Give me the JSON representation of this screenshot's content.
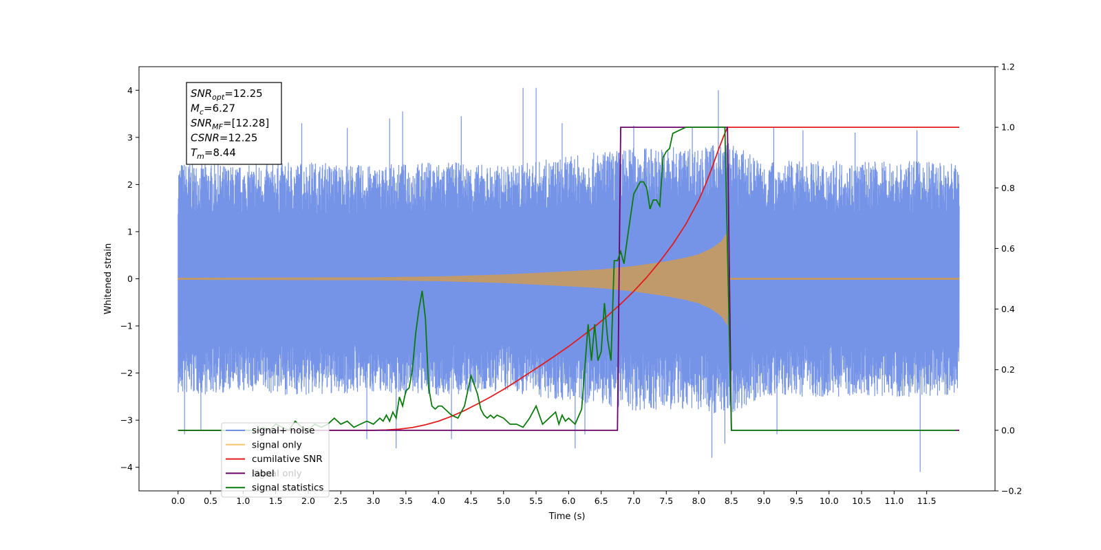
{
  "chart_data": {
    "type": "line",
    "title": "",
    "xlabel": "Time (s)",
    "ylabel": "Whitened strain",
    "xlim": [
      -0.6,
      12.55
    ],
    "ylim": [
      -4.5,
      4.5
    ],
    "y2lim": [
      -0.2,
      1.2
    ],
    "x_ticks": [
      0.0,
      0.5,
      1.0,
      1.5,
      2.0,
      2.5,
      3.0,
      3.5,
      4.0,
      4.5,
      5.0,
      5.5,
      6.0,
      6.5,
      7.0,
      7.5,
      8.0,
      8.5,
      9.0,
      9.5,
      10.0,
      10.5,
      11.0,
      11.5
    ],
    "x_tick_labels": [
      "0.0",
      "0.5",
      "1.0",
      "1.5",
      "2.0",
      "2.5",
      "3.0",
      "3.5",
      "4.0",
      "4.5",
      "5.0",
      "5.5",
      "6.0",
      "6.5",
      "7.0",
      "7.5",
      "8.0",
      "8.5",
      "9.0",
      "9.5",
      "10.0",
      "10.5",
      "11.0",
      "11.5"
    ],
    "y_ticks": [
      -4,
      -3,
      -2,
      -1,
      0,
      1,
      2,
      3,
      4
    ],
    "y_tick_labels": [
      "−4",
      "−3",
      "−2",
      "−1",
      "0",
      "1",
      "2",
      "3",
      "4"
    ],
    "y2_ticks": [
      -0.2,
      0.0,
      0.2,
      0.4,
      0.6,
      0.8,
      1.0,
      1.2
    ],
    "y2_tick_labels": [
      "−0.2",
      "0.0",
      "0.2",
      "0.4",
      "0.6",
      "0.8",
      "1.0",
      "1.2"
    ],
    "grid": false,
    "legend_position": "lower-left",
    "annotation": {
      "lines": [
        {
          "base": "SNR",
          "sub": "opt",
          "value": "=12.25"
        },
        {
          "base": "M",
          "sub": "c",
          "value": "=6.27"
        },
        {
          "base": "SNR",
          "sub": "MF",
          "value": "=[12.28]"
        },
        {
          "base": "CSNR",
          "sub": "",
          "value": "=12.25"
        },
        {
          "base": "T",
          "sub": "m",
          "value": "=8.44"
        }
      ]
    },
    "series": [
      {
        "name": "signal+ noise",
        "axis": "left",
        "color": "#6f8ee6",
        "t_start": 0.0,
        "t_end": 12.0,
        "envelope_top": [
          [
            0.0,
            2.5
          ],
          [
            1.0,
            2.4
          ],
          [
            2.0,
            2.5
          ],
          [
            3.0,
            2.4
          ],
          [
            4.0,
            2.5
          ],
          [
            5.0,
            2.4
          ],
          [
            6.0,
            2.6
          ],
          [
            7.0,
            2.8
          ],
          [
            8.0,
            2.8
          ],
          [
            8.45,
            2.9
          ],
          [
            9.0,
            2.5
          ],
          [
            10.0,
            2.5
          ],
          [
            11.0,
            2.5
          ],
          [
            12.0,
            2.5
          ]
        ],
        "envelope_bottom": [
          [
            0.0,
            -2.5
          ],
          [
            1.0,
            -2.4
          ],
          [
            2.0,
            -2.5
          ],
          [
            3.0,
            -2.4
          ],
          [
            4.0,
            -2.5
          ],
          [
            5.0,
            -2.4
          ],
          [
            6.0,
            -2.6
          ],
          [
            7.0,
            -2.8
          ],
          [
            8.0,
            -2.8
          ],
          [
            8.45,
            -2.9
          ],
          [
            9.0,
            -2.5
          ],
          [
            10.0,
            -2.5
          ],
          [
            11.0,
            -2.5
          ],
          [
            12.0,
            -2.5
          ]
        ],
        "spikes": [
          [
            0.1,
            -3.3
          ],
          [
            0.35,
            -3.2
          ],
          [
            1.2,
            3.1
          ],
          [
            1.9,
            3.3
          ],
          [
            2.6,
            3.2
          ],
          [
            2.9,
            -3.4
          ],
          [
            3.25,
            3.4
          ],
          [
            3.35,
            -3.6
          ],
          [
            3.45,
            3.55
          ],
          [
            4.2,
            -3.4
          ],
          [
            4.35,
            3.45
          ],
          [
            5.3,
            4.05
          ],
          [
            5.5,
            4.05
          ],
          [
            5.9,
            3.3
          ],
          [
            6.1,
            -3.6
          ],
          [
            6.25,
            -3.3
          ],
          [
            7.0,
            3.25
          ],
          [
            7.9,
            3.2
          ],
          [
            8.2,
            -3.8
          ],
          [
            8.3,
            4.0
          ],
          [
            8.4,
            -3.5
          ],
          [
            9.15,
            3.2
          ],
          [
            9.2,
            -3.3
          ],
          [
            9.6,
            3.15
          ],
          [
            10.4,
            3.1
          ],
          [
            11.35,
            3.15
          ],
          [
            11.4,
            -4.1
          ]
        ]
      },
      {
        "name": "signal only",
        "axis": "left",
        "color": "#c09a6b",
        "t_start": 0.0,
        "t_end": 8.45,
        "amplitude_envelope": [
          [
            0.0,
            0.02
          ],
          [
            3.0,
            0.03
          ],
          [
            4.0,
            0.05
          ],
          [
            5.0,
            0.09
          ],
          [
            6.0,
            0.16
          ],
          [
            6.5,
            0.2
          ],
          [
            7.0,
            0.27
          ],
          [
            7.5,
            0.37
          ],
          [
            7.8,
            0.45
          ],
          [
            8.0,
            0.52
          ],
          [
            8.2,
            0.65
          ],
          [
            8.35,
            0.8
          ],
          [
            8.44,
            1.0
          ],
          [
            8.46,
            0.02
          ],
          [
            12.0,
            0.02
          ]
        ]
      },
      {
        "name": "cumilative SNR",
        "axis": "right",
        "color": "#e31a1c",
        "x": [
          0.0,
          2.0,
          3.0,
          3.2,
          3.4,
          3.6,
          3.8,
          4.0,
          4.2,
          4.4,
          4.6,
          4.8,
          5.0,
          5.2,
          5.4,
          5.6,
          5.8,
          6.0,
          6.2,
          6.4,
          6.6,
          6.8,
          7.0,
          7.2,
          7.4,
          7.6,
          7.8,
          8.0,
          8.1,
          8.2,
          8.3,
          8.38,
          8.44,
          8.5,
          9.0,
          10.0,
          11.0,
          12.0
        ],
        "y": [
          0.0,
          0.0,
          0.0,
          0.001,
          0.004,
          0.009,
          0.018,
          0.03,
          0.046,
          0.065,
          0.087,
          0.11,
          0.135,
          0.162,
          0.19,
          0.218,
          0.247,
          0.277,
          0.309,
          0.342,
          0.378,
          0.417,
          0.459,
          0.505,
          0.557,
          0.614,
          0.68,
          0.76,
          0.81,
          0.865,
          0.925,
          0.97,
          1.0,
          1.0,
          1.0,
          1.0,
          1.0,
          1.0
        ]
      },
      {
        "name": "label",
        "axis": "right",
        "color": "#6a006a",
        "x": [
          0.0,
          6.75,
          6.8,
          8.44,
          8.5,
          12.0
        ],
        "y": [
          0.0,
          0.0,
          1.0,
          1.0,
          0.0,
          0.0
        ]
      },
      {
        "name": "signal statistics",
        "axis": "right",
        "color": "#0a7a0a",
        "x": [
          0.0,
          1.2,
          1.3,
          1.4,
          1.5,
          1.6,
          1.7,
          1.8,
          1.9,
          2.0,
          2.1,
          2.2,
          2.3,
          2.4,
          2.5,
          2.6,
          2.7,
          2.8,
          2.9,
          3.0,
          3.1,
          3.15,
          3.2,
          3.25,
          3.3,
          3.35,
          3.4,
          3.45,
          3.5,
          3.55,
          3.6,
          3.65,
          3.7,
          3.75,
          3.8,
          3.85,
          3.9,
          3.95,
          4.0,
          4.05,
          4.1,
          4.2,
          4.3,
          4.4,
          4.5,
          4.6,
          4.65,
          4.7,
          4.75,
          4.8,
          4.85,
          4.9,
          5.0,
          5.1,
          5.2,
          5.3,
          5.4,
          5.5,
          5.6,
          5.7,
          5.8,
          5.85,
          5.9,
          5.95,
          6.0,
          6.1,
          6.2,
          6.3,
          6.35,
          6.4,
          6.45,
          6.5,
          6.55,
          6.6,
          6.65,
          6.7,
          6.75,
          6.8,
          6.85,
          6.9,
          7.0,
          7.05,
          7.1,
          7.15,
          7.2,
          7.25,
          7.3,
          7.35,
          7.4,
          7.45,
          7.5,
          7.55,
          7.6,
          7.7,
          7.8,
          7.9,
          8.0,
          8.1,
          8.2,
          8.3,
          8.35,
          8.4,
          8.45,
          8.5,
          8.55,
          9.0,
          10.0,
          11.0,
          11.95
        ],
        "y": [
          0.0,
          0.0,
          0.01,
          0.0,
          0.02,
          0.01,
          0.0,
          0.03,
          0.01,
          0.0,
          0.02,
          0.01,
          0.02,
          0.04,
          0.02,
          0.03,
          0.01,
          0.02,
          0.03,
          0.02,
          0.04,
          0.03,
          0.05,
          0.03,
          0.06,
          0.04,
          0.11,
          0.08,
          0.13,
          0.14,
          0.2,
          0.32,
          0.4,
          0.46,
          0.37,
          0.14,
          0.08,
          0.07,
          0.08,
          0.08,
          0.07,
          0.05,
          0.04,
          0.08,
          0.18,
          0.12,
          0.07,
          0.05,
          0.04,
          0.05,
          0.04,
          0.05,
          0.04,
          0.02,
          0.02,
          0.01,
          0.04,
          0.08,
          0.02,
          0.04,
          0.06,
          0.02,
          0.05,
          0.03,
          0.04,
          0.02,
          0.07,
          0.35,
          0.23,
          0.35,
          0.23,
          0.26,
          0.42,
          0.3,
          0.23,
          0.56,
          0.56,
          0.59,
          0.55,
          0.63,
          0.78,
          0.8,
          0.82,
          0.82,
          0.8,
          0.73,
          0.76,
          0.76,
          0.74,
          0.9,
          0.92,
          0.93,
          0.98,
          0.99,
          1.0,
          1.0,
          1.0,
          1.0,
          1.0,
          1.0,
          1.0,
          1.0,
          0.5,
          0.0,
          0.0,
          0.0,
          0.0,
          0.0,
          0.0
        ]
      }
    ],
    "legend": [
      {
        "label": "signal+ noise",
        "color": "#6f8ee6"
      },
      {
        "label": "signal only",
        "color": "#f4c56a"
      },
      {
        "label": "cumilative SNR",
        "color": "#e31a1c"
      },
      {
        "label": "label",
        "color": "#6a006a"
      },
      {
        "label": "signal statistics",
        "color": "#0a7a0a"
      }
    ],
    "legend_overlap_text": "signal only"
  }
}
